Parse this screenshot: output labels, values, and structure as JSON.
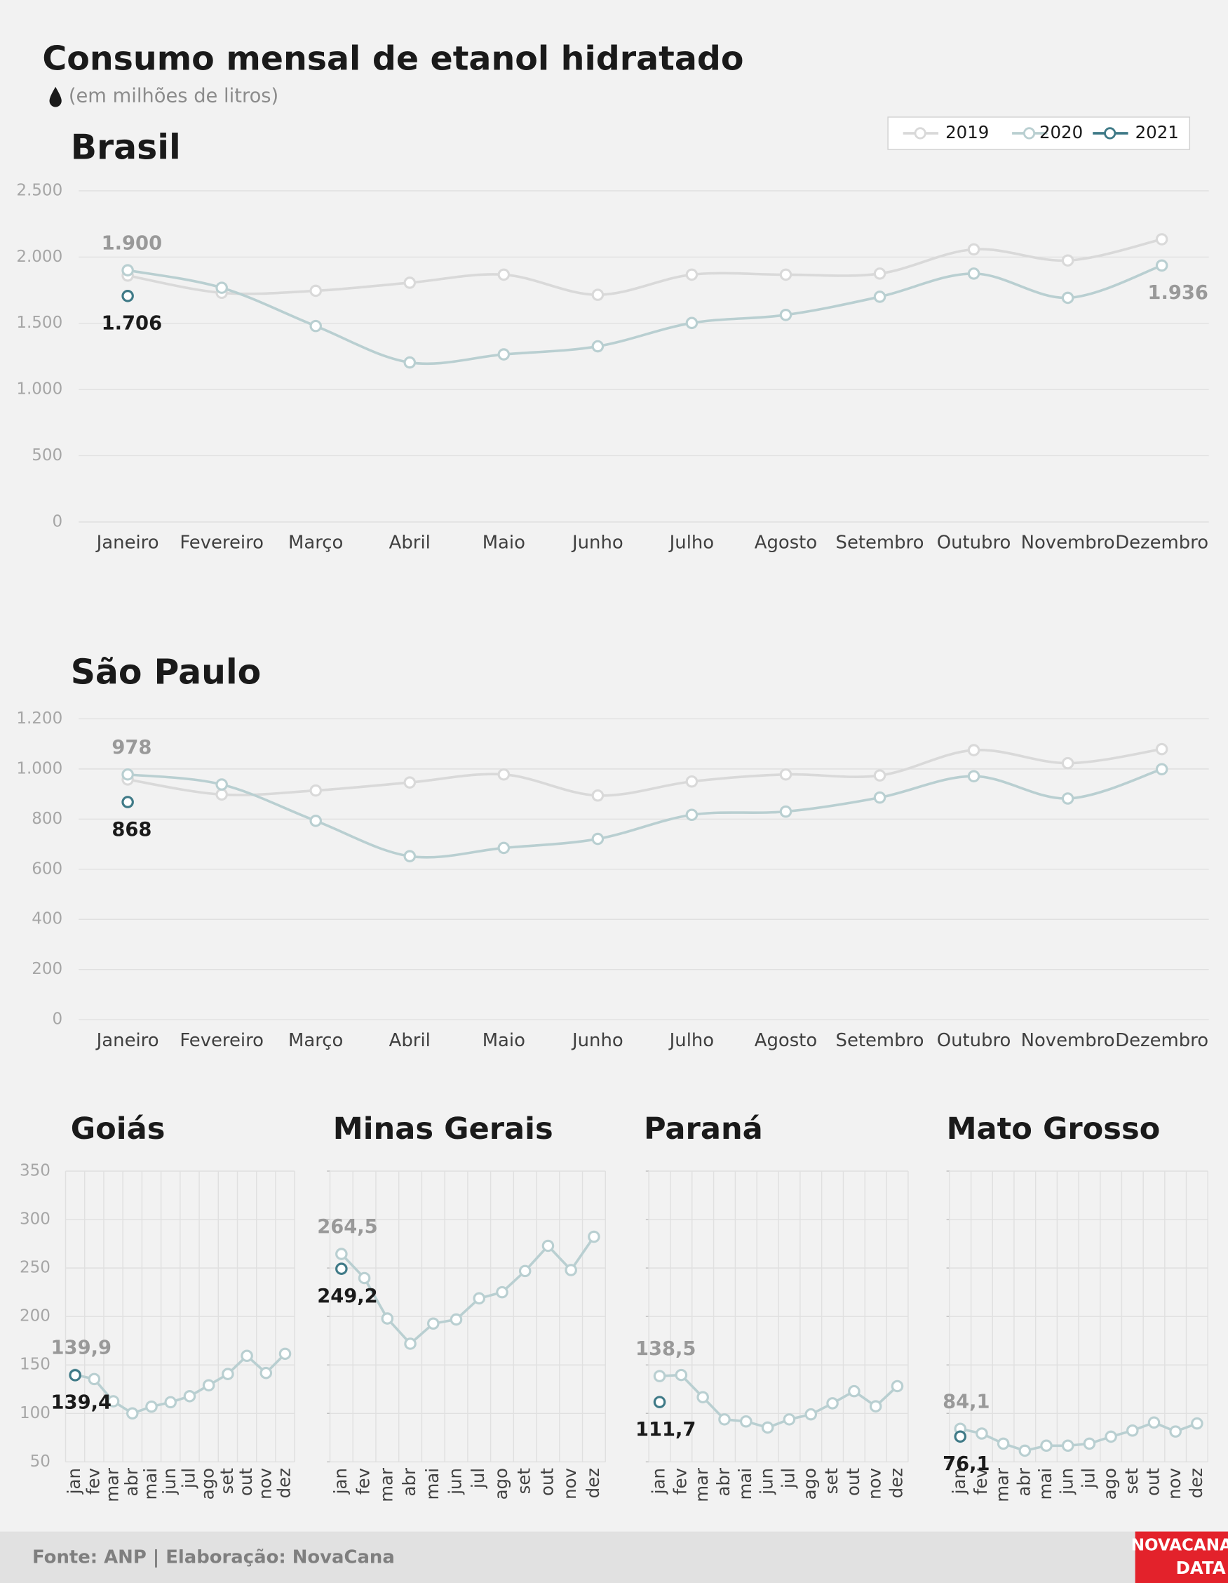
{
  "title": "Consumo mensal de etanol hidratado",
  "subtitle": "(em milhões de litros)",
  "footer": "Fonte: ANP | Elaboração: NovaCana",
  "logo": [
    "NOVACANA",
    "DATA"
  ],
  "chart_data": [
    {
      "type": "line",
      "title": "Brasil",
      "smooth": true,
      "grid": true,
      "legend": "top-right",
      "categories": [
        "Janeiro",
        "Fevereiro",
        "Março",
        "Abril",
        "Maio",
        "Junho",
        "Julho",
        "Agosto",
        "Setembro",
        "Outubro",
        "Novembro",
        "Dezembro"
      ],
      "ylim": [
        0,
        2500
      ],
      "yticks": [
        0,
        500,
        {
          "value": 1000,
          "label": "1.000"
        },
        {
          "value": 1500,
          "label": "1.500"
        },
        {
          "value": 2000,
          "label": "2.000"
        },
        {
          "value": 2500,
          "label": "2.500"
        }
      ],
      "series": [
        {
          "name": "2019",
          "color": "#d9d9d9",
          "values": [
            1860,
            1730,
            1745,
            1806,
            1867,
            1715,
            1867,
            1867,
            1875,
            2058,
            1974,
            2134
          ]
        },
        {
          "name": "2020",
          "color": "#b9cfd1",
          "values": [
            1900,
            1768,
            1479,
            1204,
            1265,
            1326,
            1502,
            1563,
            1700,
            1875,
            1692,
            1936
          ],
          "value_labels": [
            "1.900",
            null,
            null,
            null,
            null,
            null,
            null,
            null,
            null,
            null,
            null,
            "1.936"
          ]
        },
        {
          "name": "2021",
          "color": "#3f7a87",
          "values": [
            1706,
            null,
            null,
            null,
            null,
            null,
            null,
            null,
            null,
            null,
            null,
            null
          ],
          "value_labels": [
            "1.706",
            null,
            null,
            null,
            null,
            null,
            null,
            null,
            null,
            null,
            null,
            null
          ]
        }
      ]
    },
    {
      "type": "line",
      "title": "São Paulo",
      "smooth": true,
      "grid": true,
      "categories": [
        "Janeiro",
        "Fevereiro",
        "Março",
        "Abril",
        "Maio",
        "Junho",
        "Julho",
        "Agosto",
        "Setembro",
        "Outubro",
        "Novembro",
        "Dezembro"
      ],
      "ylim": [
        0,
        1200
      ],
      "yticks": [
        0,
        200,
        400,
        600,
        800,
        {
          "value": 1000,
          "label": "1.000"
        },
        {
          "value": 1200,
          "label": "1.200"
        }
      ],
      "series": [
        {
          "color": "#d9d9d9",
          "values": [
            958,
            898,
            914,
            946,
            978,
            894,
            950,
            978,
            974,
            1075,
            1023,
            1079
          ]
        },
        {
          "color": "#b9cfd1",
          "values": [
            978,
            938,
            793,
            652,
            685,
            721,
            817,
            830,
            886,
            971,
            882,
            999
          ],
          "value_labels": [
            "978",
            null,
            null,
            null,
            null,
            null,
            null,
            null,
            null,
            null,
            null,
            null
          ]
        },
        {
          "color": "#3f7a87",
          "values": [
            868,
            null,
            null,
            null,
            null,
            null,
            null,
            null,
            null,
            null,
            null,
            null
          ],
          "value_labels": [
            "868",
            null,
            null,
            null,
            null,
            null,
            null,
            null,
            null,
            null,
            null,
            null
          ]
        }
      ]
    },
    {
      "type": "line",
      "title": "Goiás",
      "smooth": false,
      "grid": true,
      "vgrid": true,
      "show_ytick_labels": true,
      "categories": [
        "jan",
        "fev",
        "mar",
        "abr",
        "mai",
        "jun",
        "jul",
        "ago",
        "set",
        "out",
        "nov",
        "dez"
      ],
      "ylim": [
        50,
        350
      ],
      "yticks": [
        50,
        100,
        150,
        200,
        250,
        300,
        350
      ],
      "series": [
        {
          "color": "#b9cfd1",
          "values": [
            139.9,
            135.4,
            112.5,
            100,
            107,
            111.5,
            117.7,
            129,
            140.6,
            159.4,
            141.7,
            161.5
          ],
          "value_labels": [
            "139,9",
            null,
            null,
            null,
            null,
            null,
            null,
            null,
            null,
            null,
            null,
            null
          ]
        },
        {
          "color": "#3f7a87",
          "values": [
            139.4,
            null,
            null,
            null,
            null,
            null,
            null,
            null,
            null,
            null,
            null,
            null
          ],
          "value_labels": [
            "139,4",
            null,
            null,
            null,
            null,
            null,
            null,
            null,
            null,
            null,
            null,
            null
          ]
        }
      ]
    },
    {
      "type": "line",
      "title": "Minas Gerais",
      "smooth": false,
      "grid": true,
      "vgrid": true,
      "show_ytick_labels": false,
      "categories": [
        "jan",
        "fev",
        "mar",
        "abr",
        "mai",
        "jun",
        "jul",
        "ago",
        "set",
        "out",
        "nov",
        "dez"
      ],
      "ylim": [
        50,
        350
      ],
      "yticks": [
        50,
        100,
        150,
        200,
        250,
        300,
        350
      ],
      "series": [
        {
          "color": "#b9cfd1",
          "values": [
            264.5,
            239.6,
            197.9,
            171.9,
            192.7,
            196.9,
            218.7,
            225,
            246.9,
            272.9,
            247.9,
            282.3
          ],
          "value_labels": [
            "264,5",
            null,
            null,
            null,
            null,
            null,
            null,
            null,
            null,
            null,
            null,
            null
          ]
        },
        {
          "color": "#3f7a87",
          "values": [
            249.2,
            null,
            null,
            null,
            null,
            null,
            null,
            null,
            null,
            null,
            null,
            null
          ],
          "value_labels": [
            "249,2",
            null,
            null,
            null,
            null,
            null,
            null,
            null,
            null,
            null,
            null,
            null
          ]
        }
      ]
    },
    {
      "type": "line",
      "title": "Paraná",
      "smooth": false,
      "grid": true,
      "vgrid": true,
      "show_ytick_labels": false,
      "categories": [
        "jan",
        "fev",
        "mar",
        "abr",
        "mai",
        "jun",
        "jul",
        "ago",
        "set",
        "out",
        "nov",
        "dez"
      ],
      "ylim": [
        50,
        350
      ],
      "yticks": [
        50,
        100,
        150,
        200,
        250,
        300,
        350
      ],
      "series": [
        {
          "color": "#b9cfd1",
          "values": [
            138.5,
            139.6,
            116.7,
            93.8,
            91.7,
            85.4,
            93.8,
            99,
            110.4,
            122.9,
            107.3,
            128.1
          ],
          "value_labels": [
            "138,5",
            null,
            null,
            null,
            null,
            null,
            null,
            null,
            null,
            null,
            null,
            null
          ]
        },
        {
          "color": "#3f7a87",
          "values": [
            111.7,
            null,
            null,
            null,
            null,
            null,
            null,
            null,
            null,
            null,
            null,
            null
          ],
          "value_labels": [
            "111,7",
            null,
            null,
            null,
            null,
            null,
            null,
            null,
            null,
            null,
            null,
            null
          ]
        }
      ]
    },
    {
      "type": "line",
      "title": "Mato Grosso",
      "smooth": false,
      "grid": true,
      "vgrid": true,
      "show_ytick_labels": false,
      "categories": [
        "jan",
        "fev",
        "mar",
        "abr",
        "mai",
        "jun",
        "jul",
        "ago",
        "set",
        "out",
        "nov",
        "dez"
      ],
      "ylim": [
        50,
        350
      ],
      "yticks": [
        50,
        100,
        150,
        200,
        250,
        300,
        350
      ],
      "series": [
        {
          "color": "#b9cfd1",
          "values": [
            84.1,
            79.2,
            68.8,
            61.5,
            66.7,
            66.7,
            68.8,
            76,
            82.3,
            90.6,
            81.3,
            89.6
          ],
          "value_labels": [
            "84,1",
            null,
            null,
            null,
            null,
            null,
            null,
            null,
            null,
            null,
            null,
            null
          ]
        },
        {
          "color": "#3f7a87",
          "values": [
            76.1,
            null,
            null,
            null,
            null,
            null,
            null,
            null,
            null,
            null,
            null,
            null
          ],
          "value_labels": [
            "76,1",
            null,
            null,
            null,
            null,
            null,
            null,
            null,
            null,
            null,
            null,
            null
          ]
        }
      ]
    }
  ]
}
